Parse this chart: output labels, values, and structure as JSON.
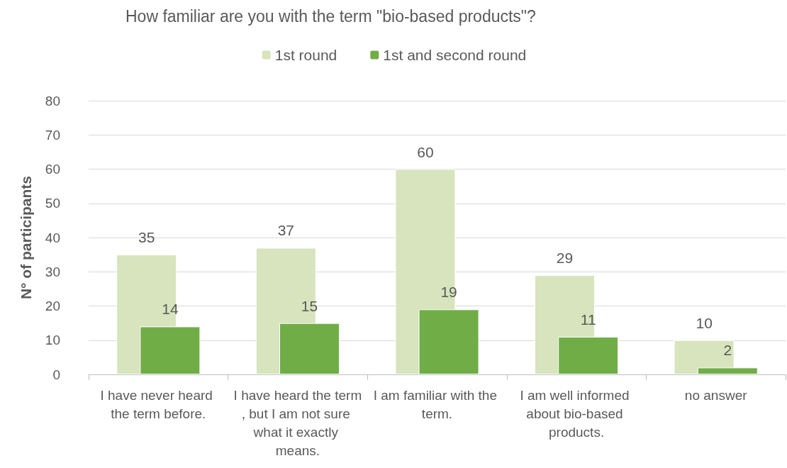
{
  "chart_data": {
    "type": "bar",
    "title": "How familiar are you with the term \"bio-based products\"?",
    "ylabel": "N° of participants",
    "categories": [
      "I have never heard the term before.",
      "I have heard the term, but I am not sure what it exactly means.",
      "I am familiar with the term.",
      "I am well informed about bio-based products.",
      "no answer"
    ],
    "series": [
      {
        "name": "1st round",
        "color": "#d7e4bd",
        "values": [
          35,
          37,
          60,
          29,
          10
        ]
      },
      {
        "name": "1st and second round",
        "color": "#70ad47",
        "values": [
          14,
          15,
          19,
          11,
          2
        ]
      }
    ],
    "ylim": [
      0,
      80
    ],
    "yticks": [
      0,
      10,
      20,
      30,
      40,
      50,
      60,
      70,
      80
    ],
    "grid": "y",
    "legend": "top",
    "data_labels": true
  }
}
